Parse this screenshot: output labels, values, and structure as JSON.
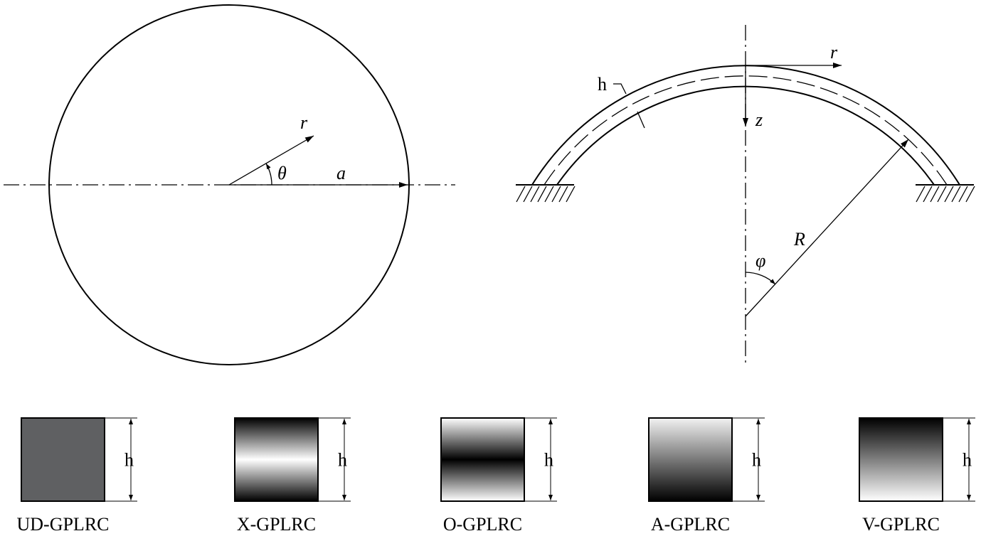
{
  "plan_view": {
    "radial_label": "r",
    "angle_label": "θ",
    "radius_label": "a"
  },
  "section_view": {
    "radial_label": "r",
    "axial_label": "z",
    "thickness_label": "h",
    "radius_label": "R",
    "angle_label": "φ"
  },
  "patterns": [
    {
      "name": "UD-GPLRC",
      "thickness_label": "h"
    },
    {
      "name": "X-GPLRC",
      "thickness_label": "h"
    },
    {
      "name": "O-GPLRC",
      "thickness_label": "h"
    },
    {
      "name": "A-GPLRC",
      "thickness_label": "h"
    },
    {
      "name": "V-GPLRC",
      "thickness_label": "h"
    }
  ]
}
